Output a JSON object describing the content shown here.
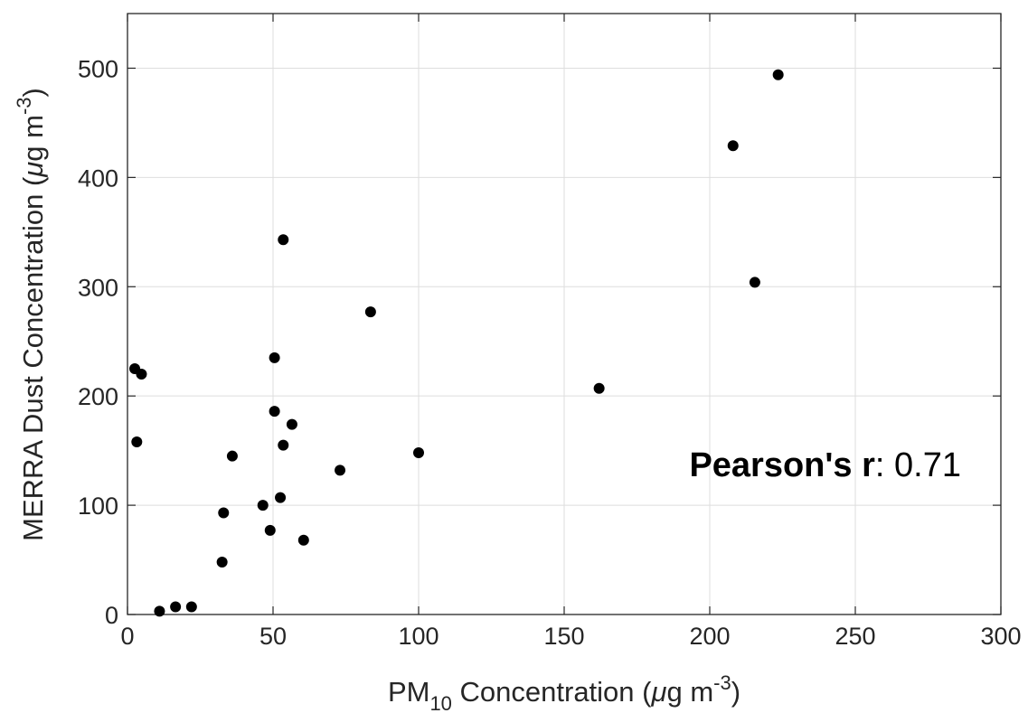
{
  "chart_data": {
    "type": "scatter",
    "xlabel": {
      "prefix": "PM",
      "sub": "10",
      "middle": " Concentration (",
      "mu": "μ",
      "unit": "g m",
      "sup": "-3",
      "suffix": ")"
    },
    "ylabel": {
      "prefix": "MERRA Dust Concentration (",
      "mu": "μ",
      "unit": "g m",
      "sup": "-3",
      "suffix": ")"
    },
    "xlim": [
      0,
      300
    ],
    "ylim": [
      0,
      550
    ],
    "xticks": [
      0,
      50,
      100,
      150,
      200,
      250,
      300
    ],
    "yticks": [
      0,
      100,
      200,
      300,
      400,
      500
    ],
    "grid": true,
    "marker_color": "#000000",
    "annotation": {
      "bold": "Pearson's r",
      "rest": ": 0.71"
    },
    "points": [
      {
        "x": 2.5,
        "y": 225
      },
      {
        "x": 4.8,
        "y": 220
      },
      {
        "x": 3.2,
        "y": 158
      },
      {
        "x": 11,
        "y": 3
      },
      {
        "x": 16.5,
        "y": 7
      },
      {
        "x": 22,
        "y": 7
      },
      {
        "x": 32.5,
        "y": 48
      },
      {
        "x": 33,
        "y": 93
      },
      {
        "x": 36,
        "y": 145
      },
      {
        "x": 46.5,
        "y": 100
      },
      {
        "x": 49,
        "y": 77
      },
      {
        "x": 50.5,
        "y": 235
      },
      {
        "x": 50.5,
        "y": 186
      },
      {
        "x": 52.5,
        "y": 107
      },
      {
        "x": 53.5,
        "y": 343
      },
      {
        "x": 53.5,
        "y": 155
      },
      {
        "x": 56.5,
        "y": 174
      },
      {
        "x": 60.5,
        "y": 68
      },
      {
        "x": 73,
        "y": 132
      },
      {
        "x": 83.5,
        "y": 277
      },
      {
        "x": 100,
        "y": 148
      },
      {
        "x": 162,
        "y": 207
      },
      {
        "x": 208,
        "y": 429
      },
      {
        "x": 215.5,
        "y": 304
      },
      {
        "x": 223.5,
        "y": 494
      }
    ]
  }
}
